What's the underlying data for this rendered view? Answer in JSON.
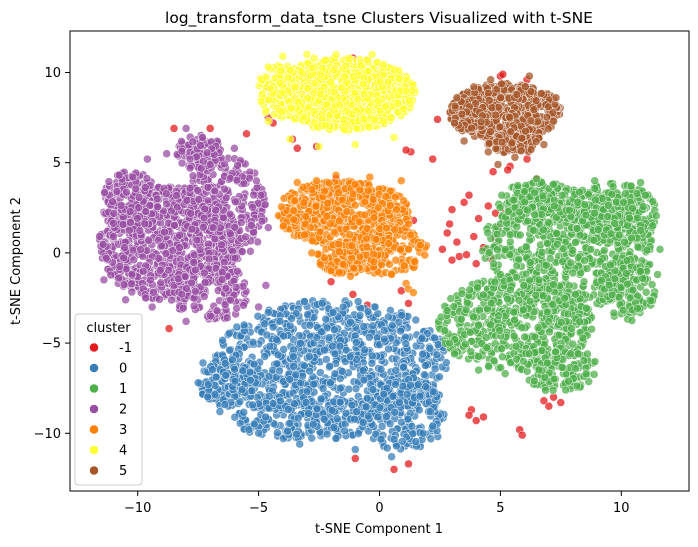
{
  "chart_data": {
    "type": "scatter",
    "title": "log_transform_data_tsne Clusters Visualized with t-SNE",
    "xlabel": "t-SNE Component 1",
    "ylabel": "t-SNE Component 2",
    "xlim": [
      -12.8,
      12.8
    ],
    "ylim": [
      -13.2,
      12.3
    ],
    "xticks": [
      -10,
      -5,
      0,
      5,
      10
    ],
    "yticks": [
      -10,
      -5,
      0,
      5,
      10
    ],
    "grid": false,
    "legend": {
      "title": "cluster",
      "placement": "lower-left"
    },
    "series": [
      {
        "name": "-1",
        "color": "#e41a1c",
        "points": [
          [
            4.8,
            2.2
          ],
          [
            3.5,
            2.8
          ],
          [
            2.9,
            1.6
          ],
          [
            3.2,
            0.6
          ],
          [
            4.3,
            0.3
          ],
          [
            3.0,
            -0.4
          ],
          [
            4.8,
            0.8
          ],
          [
            3.7,
            3.2
          ],
          [
            2.6,
            0.2
          ],
          [
            4.0,
            -0.6
          ],
          [
            3.3,
            -0.2
          ],
          [
            4.5,
            2.6
          ],
          [
            5.2,
            2.3
          ],
          [
            4.9,
            1.4
          ],
          [
            3.6,
            -0.1
          ],
          [
            4.1,
            1.9
          ],
          [
            3.0,
            2.4
          ],
          [
            3.9,
            0.9
          ],
          [
            4.6,
            -0.3
          ],
          [
            2.8,
            1.1
          ],
          [
            -2.0,
            -1.6
          ],
          [
            -1.1,
            -2.3
          ],
          [
            -0.5,
            -2.9
          ],
          [
            0.9,
            -2.1
          ],
          [
            1.2,
            -2.8
          ],
          [
            -2.6,
            5.9
          ],
          [
            -3.6,
            6.3
          ],
          [
            -4.6,
            7.5
          ],
          [
            1.3,
            5.6
          ],
          [
            1.1,
            5.7
          ],
          [
            2.2,
            5.2
          ],
          [
            -4.6,
            9.2
          ],
          [
            -4.4,
            7.2
          ],
          [
            3.8,
            -8.7
          ],
          [
            3.7,
            -9.0
          ],
          [
            4.0,
            -9.3
          ],
          [
            4.3,
            -9.1
          ],
          [
            5.8,
            -9.8
          ],
          [
            5.9,
            -10.1
          ],
          [
            7.2,
            -8.0
          ],
          [
            7.5,
            -8.3
          ],
          [
            6.8,
            -8.2
          ],
          [
            7.0,
            -8.5
          ],
          [
            1.2,
            -11.7
          ],
          [
            0.6,
            -12.0
          ],
          [
            -1.0,
            -11.4
          ],
          [
            -7.0,
            6.9
          ],
          [
            -8.5,
            6.9
          ],
          [
            -9.4,
            2.1
          ],
          [
            -8.7,
            -4.2
          ],
          [
            -4.0,
            -3.1
          ],
          [
            4.2,
            6.5
          ],
          [
            5.6,
            6.2
          ],
          [
            6.6,
            6.6
          ],
          [
            6.1,
            9.6
          ],
          [
            5.0,
            9.8
          ],
          [
            4.0,
            7.3
          ],
          [
            2.4,
            7.4
          ],
          [
            5.4,
            4.8
          ],
          [
            6.5,
            4.1
          ],
          [
            -1.8,
            4.1
          ],
          [
            -1.9,
            3.2
          ],
          [
            -0.7,
            3.4
          ],
          [
            -1.2,
            2.6
          ],
          [
            0.7,
            0.4
          ],
          [
            1.4,
            1.8
          ],
          [
            0.2,
            -0.2
          ],
          [
            -5.5,
            6.6
          ],
          [
            -3.4,
            5.8
          ],
          [
            -1.1,
            10.8
          ],
          [
            -1.4,
            10.6
          ],
          [
            -0.5,
            10.7
          ],
          [
            4.7,
            4.5
          ],
          [
            5.3,
            4.6
          ],
          [
            5.1,
            9.9
          ],
          [
            4.4,
            8.7
          ],
          [
            6.1,
            5.2
          ]
        ]
      },
      {
        "name": "0",
        "color": "#377eb8",
        "ellipses": [
          {
            "cx": -2.0,
            "cy": -6.0,
            "rx": 4.8,
            "ry": 3.4,
            "n": 900
          },
          {
            "cx": -6.3,
            "cy": -7.2,
            "rx": 1.2,
            "ry": 1.3,
            "n": 140
          },
          {
            "cx": 1.0,
            "cy": -9.0,
            "rx": 1.8,
            "ry": 2.0,
            "n": 200
          },
          {
            "cx": -3.0,
            "cy": -9.2,
            "rx": 3.0,
            "ry": 1.2,
            "n": 200
          }
        ],
        "points": [
          [
            -6.2,
            -5.4
          ],
          [
            -7.3,
            -6.1
          ],
          [
            -7.5,
            -7.2
          ],
          [
            -6.6,
            -8.8
          ],
          [
            -5.4,
            -9.8
          ],
          [
            -3.3,
            -10.6
          ],
          [
            -1.0,
            -10.9
          ],
          [
            0.5,
            -11.3
          ],
          [
            1.8,
            -10.0
          ],
          [
            2.1,
            -8.8
          ],
          [
            1.6,
            -7.3
          ],
          [
            0.2,
            -4.3
          ],
          [
            -3.1,
            -2.7
          ],
          [
            -4.6,
            -3.3
          ],
          [
            -5.6,
            -4.0
          ],
          [
            -1.5,
            -3.0
          ]
        ]
      },
      {
        "name": "1",
        "color": "#4daf4a",
        "ellipses": [
          {
            "cx": 7.8,
            "cy": 0.2,
            "rx": 3.6,
            "ry": 3.3,
            "n": 650
          },
          {
            "cx": 5.6,
            "cy": -3.9,
            "rx": 3.2,
            "ry": 2.6,
            "n": 520
          },
          {
            "cx": 9.6,
            "cy": 2.2,
            "rx": 1.9,
            "ry": 1.7,
            "n": 240
          },
          {
            "cx": 6.7,
            "cy": 2.8,
            "rx": 1.8,
            "ry": 1.2,
            "n": 160
          },
          {
            "cx": 7.4,
            "cy": -6.4,
            "rx": 1.6,
            "ry": 1.3,
            "n": 130
          },
          {
            "cx": 10.2,
            "cy": -2.0,
            "rx": 1.2,
            "ry": 1.8,
            "n": 130
          }
        ],
        "points": [
          [
            2.8,
            -3.2
          ],
          [
            2.7,
            -4.3
          ],
          [
            3.1,
            -5.6
          ],
          [
            4.1,
            -6.5
          ],
          [
            5.2,
            -6.7
          ],
          [
            6.4,
            -7.1
          ],
          [
            8.6,
            -5.6
          ],
          [
            11.5,
            -1.2
          ],
          [
            11.6,
            0.2
          ],
          [
            11.3,
            1.5
          ],
          [
            10.4,
            3.7
          ],
          [
            8.9,
            4.0
          ],
          [
            7.2,
            3.8
          ],
          [
            6.0,
            3.4
          ],
          [
            5.4,
            1.0
          ],
          [
            5.0,
            -1.2
          ],
          [
            6.7,
            3.9
          ],
          [
            6.5,
            4.1
          ],
          [
            10.8,
            3.9
          ],
          [
            11.0,
            3.2
          ],
          [
            7.7,
            -7.6
          ],
          [
            2.9,
            -5.0
          ]
        ]
      },
      {
        "name": "2",
        "color": "#984ea3",
        "ellipses": [
          {
            "cx": -8.7,
            "cy": 0.5,
            "rx": 2.9,
            "ry": 3.2,
            "n": 780
          },
          {
            "cx": -6.4,
            "cy": 2.4,
            "rx": 1.7,
            "ry": 3.0,
            "n": 320
          },
          {
            "cx": -10.3,
            "cy": 2.8,
            "rx": 1.2,
            "ry": 1.8,
            "n": 160
          },
          {
            "cx": -7.0,
            "cy": -2.2,
            "rx": 1.7,
            "ry": 1.6,
            "n": 160
          },
          {
            "cx": -7.4,
            "cy": 5.6,
            "rx": 1.0,
            "ry": 1.0,
            "n": 90
          }
        ],
        "points": [
          [
            -11.4,
            -1.5
          ],
          [
            -11.3,
            -0.3
          ],
          [
            -11.0,
            0.9
          ],
          [
            -10.2,
            4.2
          ],
          [
            -9.6,
            5.2
          ],
          [
            -8.0,
            6.9
          ],
          [
            -6.0,
            5.8
          ],
          [
            -4.9,
            3.2
          ],
          [
            -4.6,
            1.4
          ],
          [
            -4.7,
            -1.8
          ],
          [
            -5.0,
            -3.0
          ],
          [
            -6.3,
            -3.6
          ],
          [
            -8.0,
            -3.8
          ],
          [
            -9.4,
            -3.0
          ],
          [
            -10.5,
            -2.6
          ],
          [
            -8.8,
            5.5
          ]
        ]
      },
      {
        "name": "3",
        "color": "#ff7f00",
        "ellipses": [
          {
            "cx": -1.5,
            "cy": 2.2,
            "rx": 2.8,
            "ry": 1.8,
            "n": 520
          },
          {
            "cx": 0.2,
            "cy": 0.2,
            "rx": 1.8,
            "ry": 1.4,
            "n": 180
          },
          {
            "cx": -1.3,
            "cy": -0.3,
            "rx": 1.3,
            "ry": 0.9,
            "n": 120
          }
        ],
        "points": [
          [
            -3.4,
            3.9
          ],
          [
            -3.5,
            2.9
          ],
          [
            -3.1,
            1.0
          ],
          [
            -2.8,
            0.0
          ],
          [
            -2.0,
            -1.0
          ],
          [
            -1.2,
            -1.3
          ],
          [
            0.5,
            -1.2
          ],
          [
            1.1,
            -1.7
          ],
          [
            1.2,
            -2.0
          ],
          [
            1.4,
            -2.2
          ],
          [
            0.9,
            4.0
          ],
          [
            -0.4,
            4.2
          ],
          [
            -1.8,
            4.3
          ],
          [
            -2.6,
            4.0
          ],
          [
            1.2,
            1.6
          ],
          [
            1.0,
            2.9
          ]
        ]
      },
      {
        "name": "4",
        "color": "#ffff33",
        "ellipses": [
          {
            "cx": -1.5,
            "cy": 8.8,
            "rx": 3.0,
            "ry": 2.0,
            "n": 900
          },
          {
            "cx": -4.2,
            "cy": 9.0,
            "rx": 0.8,
            "ry": 1.6,
            "n": 90
          }
        ],
        "points": [
          [
            -4.6,
            10.3
          ],
          [
            -4.9,
            8.4
          ],
          [
            -4.6,
            7.3
          ],
          [
            -3.7,
            6.3
          ],
          [
            -2.5,
            5.9
          ],
          [
            -1.0,
            6.0
          ],
          [
            0.6,
            6.4
          ],
          [
            1.0,
            8.0
          ],
          [
            0.8,
            10.1
          ],
          [
            -0.3,
            11.0
          ],
          [
            -1.8,
            11.0
          ],
          [
            -3.0,
            11.0
          ],
          [
            -4.0,
            10.9
          ],
          [
            -2.7,
            10.8
          ]
        ]
      },
      {
        "name": "5",
        "color": "#a65628",
        "ellipses": [
          {
            "cx": 5.2,
            "cy": 7.8,
            "rx": 2.3,
            "ry": 1.6,
            "n": 520
          },
          {
            "cx": 3.7,
            "cy": 7.6,
            "rx": 0.8,
            "ry": 0.9,
            "n": 70
          },
          {
            "cx": 5.6,
            "cy": 6.3,
            "rx": 1.2,
            "ry": 0.8,
            "n": 90
          }
        ],
        "points": [
          [
            3.2,
            8.6
          ],
          [
            3.1,
            7.2
          ],
          [
            3.5,
            6.2
          ],
          [
            4.5,
            5.6
          ],
          [
            5.6,
            5.3
          ],
          [
            6.8,
            6.0
          ],
          [
            7.2,
            7.3
          ],
          [
            7.3,
            8.6
          ],
          [
            6.2,
            9.8
          ],
          [
            4.6,
            9.6
          ],
          [
            3.9,
            9.2
          ],
          [
            4.9,
            4.9
          ]
        ]
      }
    ]
  }
}
